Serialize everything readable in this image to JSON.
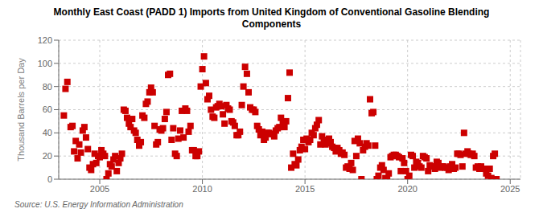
{
  "chart_data": {
    "type": "scatter",
    "title": "Monthly East Coast (PADD 1) Imports from United Kingdom of Conventional Gasoline Blending\nComponents",
    "ylabel": "Thousand Barrels per Day",
    "annotation": "Source: U.S. Energy Information Administration",
    "color": "#cc0000",
    "marker": "square",
    "grid": true,
    "xlim": [
      2003.0,
      2025.5
    ],
    "xticks": [
      2005,
      2010,
      2015,
      2020,
      2025
    ],
    "ylim": [
      0,
      120
    ],
    "yticks": [
      0,
      20,
      40,
      60,
      80,
      100,
      120
    ],
    "x": [
      2003.25,
      2003.33,
      2003.42,
      2003.58,
      2003.67,
      2003.75,
      2003.83,
      2003.92,
      2004.0,
      2004.08,
      2004.17,
      2004.25,
      2004.33,
      2004.42,
      2004.5,
      2004.58,
      2004.67,
      2004.75,
      2004.83,
      2004.92,
      2005.0,
      2005.08,
      2005.17,
      2005.25,
      2005.33,
      2005.42,
      2005.5,
      2005.58,
      2005.67,
      2005.75,
      2005.83,
      2005.92,
      2006.0,
      2006.08,
      2006.17,
      2006.25,
      2006.33,
      2006.42,
      2006.5,
      2006.58,
      2006.67,
      2006.75,
      2006.83,
      2006.92,
      2007.0,
      2007.08,
      2007.17,
      2007.25,
      2007.33,
      2007.42,
      2007.5,
      2007.58,
      2007.67,
      2007.75,
      2007.83,
      2007.92,
      2008.0,
      2008.08,
      2008.17,
      2008.25,
      2008.33,
      2008.42,
      2008.5,
      2008.58,
      2008.67,
      2008.75,
      2008.83,
      2008.92,
      2009.0,
      2009.08,
      2009.17,
      2009.25,
      2009.33,
      2009.42,
      2009.5,
      2009.58,
      2009.67,
      2009.75,
      2009.83,
      2009.92,
      2010.0,
      2010.08,
      2010.17,
      2010.25,
      2010.33,
      2010.42,
      2010.5,
      2010.58,
      2010.67,
      2010.75,
      2010.83,
      2010.92,
      2011.0,
      2011.08,
      2011.17,
      2011.25,
      2011.33,
      2011.42,
      2011.5,
      2011.58,
      2011.67,
      2011.75,
      2011.83,
      2011.92,
      2012.0,
      2012.08,
      2012.17,
      2012.25,
      2012.33,
      2012.42,
      2012.5,
      2012.58,
      2012.67,
      2012.75,
      2012.83,
      2012.92,
      2013.0,
      2013.08,
      2013.17,
      2013.25,
      2013.33,
      2013.42,
      2013.5,
      2013.58,
      2013.67,
      2013.75,
      2013.83,
      2013.92,
      2014.0,
      2014.08,
      2014.17,
      2014.25,
      2014.33,
      2014.42,
      2014.5,
      2014.58,
      2014.67,
      2014.75,
      2014.83,
      2014.92,
      2015.0,
      2015.08,
      2015.17,
      2015.25,
      2015.33,
      2015.42,
      2015.5,
      2015.58,
      2015.67,
      2015.75,
      2015.83,
      2015.92,
      2016.0,
      2016.08,
      2016.17,
      2016.25,
      2016.33,
      2016.42,
      2016.5,
      2016.58,
      2016.67,
      2016.75,
      2016.83,
      2016.92,
      2017.0,
      2017.08,
      2017.17,
      2017.25,
      2017.33,
      2017.42,
      2017.5,
      2017.58,
      2017.67,
      2017.75,
      2017.83,
      2017.92,
      2018.0,
      2018.08,
      2018.17,
      2018.25,
      2018.33,
      2018.42,
      2018.5,
      2018.58,
      2018.67,
      2018.75,
      2018.83,
      2018.92,
      2019.0,
      2019.08,
      2019.17,
      2019.25,
      2019.33,
      2019.42,
      2019.5,
      2019.58,
      2019.67,
      2019.75,
      2019.83,
      2019.92,
      2020.0,
      2020.08,
      2020.17,
      2020.25,
      2020.33,
      2020.42,
      2020.5,
      2020.58,
      2020.67,
      2020.75,
      2020.83,
      2020.92,
      2021.0,
      2021.08,
      2021.17,
      2021.25,
      2021.33,
      2021.42,
      2021.5,
      2021.58,
      2021.67,
      2021.75,
      2021.83,
      2021.92,
      2022.0,
      2022.08,
      2022.17,
      2022.25,
      2022.33,
      2022.42,
      2022.5,
      2022.58,
      2022.67,
      2022.75,
      2022.83,
      2022.92,
      2023.0,
      2023.08,
      2023.17,
      2023.25,
      2023.33,
      2023.42,
      2023.5,
      2023.58,
      2023.67,
      2023.75,
      2023.83,
      2023.92,
      2024.0,
      2024.08,
      2024.17,
      2024.25,
      2024.33
    ],
    "values": [
      55,
      78,
      84,
      45,
      46,
      24,
      33,
      18,
      30,
      23,
      42,
      45,
      36,
      26,
      10,
      8,
      13,
      22,
      14,
      20,
      19,
      25,
      22,
      20,
      0,
      5,
      13,
      11,
      17,
      20,
      7,
      14,
      18,
      22,
      60,
      59,
      53,
      48,
      45,
      52,
      42,
      40,
      34,
      29,
      32,
      55,
      53,
      65,
      67,
      75,
      79,
      75,
      46,
      30,
      32,
      43,
      42,
      44,
      52,
      58,
      90,
      91,
      34,
      44,
      22,
      20,
      35,
      42,
      59,
      36,
      61,
      59,
      41,
      46,
      25,
      25,
      20,
      20,
      24,
      80,
      95,
      106,
      83,
      69,
      72,
      60,
      54,
      53,
      62,
      63,
      65,
      63,
      56,
      48,
      64,
      61,
      60,
      50,
      49,
      46,
      38,
      38,
      41,
      64,
      80,
      97,
      91,
      75,
      62,
      60,
      60,
      58,
      46,
      43,
      38,
      41,
      34,
      36,
      40,
      40,
      39,
      39,
      37,
      42,
      44,
      45,
      53,
      48,
      45,
      50,
      70,
      92,
      10,
      22,
      13,
      12,
      17,
      25,
      28,
      34,
      26,
      35,
      32,
      34,
      40,
      38,
      44,
      47,
      51,
      30,
      37,
      34,
      30,
      31,
      35,
      32,
      28,
      27,
      24,
      27,
      25,
      22,
      23,
      21,
      10,
      11,
      9,
      14,
      8,
      33,
      20,
      35,
      31,
      0,
      25,
      28,
      31,
      29,
      69,
      57,
      58,
      29,
      0,
      3,
      10,
      12,
      8,
      1,
      0,
      5,
      19,
      20,
      21,
      21,
      20,
      19,
      7,
      18,
      14,
      7,
      0,
      3,
      21,
      20,
      10,
      15,
      14,
      11,
      10,
      20,
      19,
      18,
      7,
      12,
      11,
      11,
      9,
      15,
      14,
      10,
      11,
      11,
      10,
      10,
      8,
      11,
      13,
      9,
      10,
      22,
      22,
      21,
      11,
      40,
      22,
      24,
      22,
      21,
      22,
      20,
      10,
      11,
      9,
      11,
      9,
      9,
      5,
      3,
      9,
      1,
      20,
      22,
      0
    ]
  }
}
